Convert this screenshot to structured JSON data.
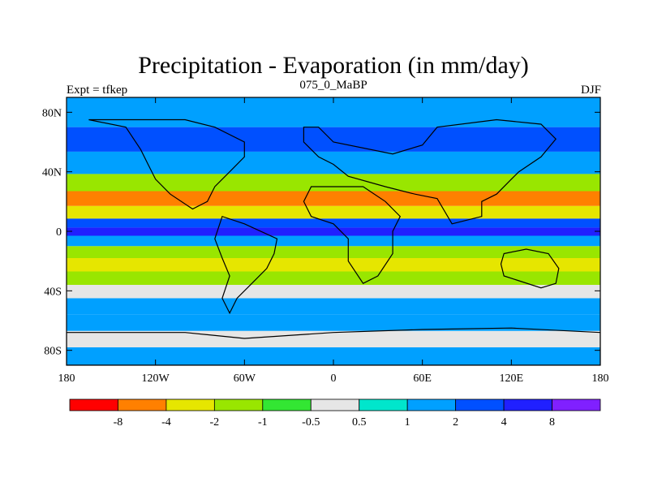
{
  "chart_data": {
    "type": "heatmap",
    "title": "Precipitation - Evaporation (in mm/day)",
    "subtitle_left": "Expt = tfkep",
    "subtitle_center": "075_0_MaBP",
    "subtitle_right": "DJF",
    "x_ticks": [
      "180",
      "120W",
      "60W",
      "0",
      "60E",
      "120E",
      "180"
    ],
    "x_tick_values": [
      -180,
      -120,
      -60,
      0,
      60,
      120,
      180
    ],
    "y_ticks": [
      "80N",
      "40N",
      "0",
      "40S",
      "80S"
    ],
    "y_tick_values": [
      80,
      40,
      0,
      -40,
      -80
    ],
    "xlim": [
      -180,
      180
    ],
    "ylim": [
      -90,
      90
    ],
    "colorbar": {
      "colors": [
        "#ff0000",
        "#ff8000",
        "#e6e600",
        "#99e600",
        "#33e633",
        "#e6e6e6",
        "#00e6cc",
        "#00a0ff",
        "#0050ff",
        "#2020ff",
        "#8020ff"
      ],
      "boundary_labels": [
        "-8",
        "-4",
        "-2",
        "-1",
        "-0.5",
        "0.5",
        "1",
        "2",
        "4",
        "8"
      ],
      "boundary_values": [
        -8,
        -4,
        -2,
        -1,
        -0.5,
        0.5,
        1,
        2,
        4,
        8
      ]
    },
    "field_bands": [
      {
        "lat": 78,
        "value": 1.5
      },
      {
        "lat": 62,
        "value": 3
      },
      {
        "lat": 45,
        "value": 2
      },
      {
        "lat": 32,
        "value": -1.5
      },
      {
        "lat": 22,
        "value": -5
      },
      {
        "lat": 12,
        "value": -2
      },
      {
        "lat": 5,
        "value": 3
      },
      {
        "lat": 0,
        "value": 5
      },
      {
        "lat": -6,
        "value": 1.5
      },
      {
        "lat": -14,
        "value": -1.5
      },
      {
        "lat": -22,
        "value": -3
      },
      {
        "lat": -32,
        "value": -1.5
      },
      {
        "lat": -40,
        "value": 0
      },
      {
        "lat": -50,
        "value": 1.5
      },
      {
        "lat": -62,
        "value": 2
      },
      {
        "lat": -72,
        "value": 0
      },
      {
        "lat": -84,
        "value": 1.5
      }
    ]
  }
}
